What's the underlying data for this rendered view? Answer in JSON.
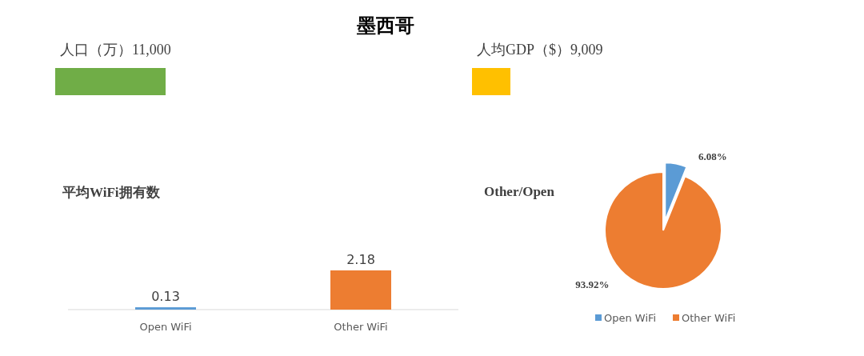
{
  "chart_data": [
    {
      "type": "other",
      "title": "墨西哥"
    },
    {
      "type": "other",
      "title": "人口（万）11,000",
      "colors": [
        "#70ad47"
      ]
    },
    {
      "type": "other",
      "title": "人均GDP（$）9,009",
      "colors": [
        "#ffc000"
      ]
    },
    {
      "type": "bar",
      "title": "平均WiFi拥有数",
      "categories": [
        "Open WiFi",
        "Other WiFi"
      ],
      "values": [
        0.13,
        2.18
      ],
      "colors": [
        "#5b9bd5",
        "#ed7d31"
      ],
      "data_labels": true
    },
    {
      "type": "pie",
      "title": "Other/Open",
      "categories": [
        "Open WiFi",
        "Other WiFi"
      ],
      "values": [
        6.08,
        93.92
      ],
      "value_labels": [
        "6.08%",
        "93.92%"
      ],
      "colors": [
        "#5b9bd5",
        "#ed7d31"
      ],
      "legend": "bottom"
    }
  ]
}
